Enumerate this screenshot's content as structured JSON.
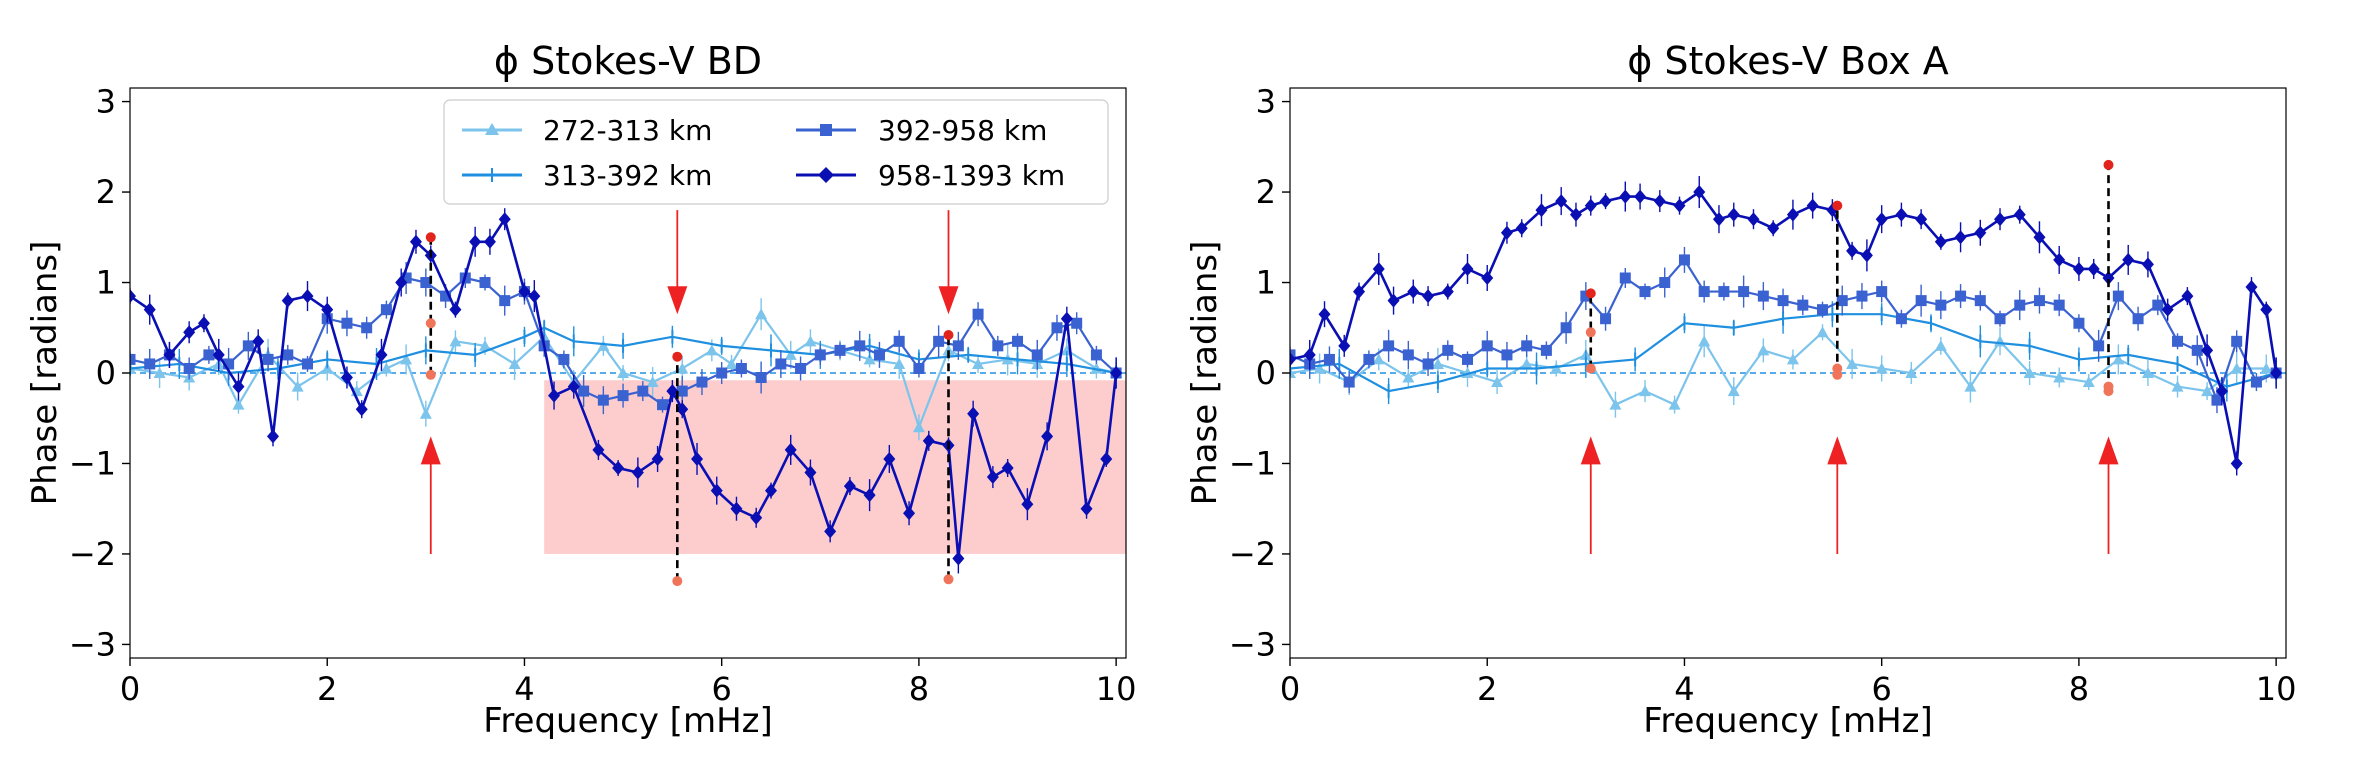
{
  "chart_data": [
    {
      "type": "line",
      "title": "ϕ Stokes-V BD",
      "xlabel": "Frequency [mHz]",
      "ylabel": "Phase [radians]",
      "xlim": [
        0,
        10.1
      ],
      "ylim": [
        -3.15,
        3.15
      ],
      "xticks": [
        0,
        2,
        4,
        6,
        8,
        10
      ],
      "xtick_labels": [
        "0",
        "2",
        "4",
        "6",
        "8",
        "10"
      ],
      "yticks": [
        -3,
        -2,
        -1,
        0,
        1,
        2,
        3
      ],
      "ytick_labels": [
        "−3",
        "−2",
        "−1",
        "0",
        "1",
        "2",
        "3"
      ],
      "shaded_region": {
        "x": [
          4.2,
          10.1
        ],
        "y": [
          -2.0,
          -0.08
        ],
        "color": "#fdcdcd"
      },
      "arrows": [
        {
          "x": 3.05,
          "direction": "up",
          "y_tip": -0.7,
          "y_tail": -2.0
        },
        {
          "x": 5.55,
          "direction": "down",
          "y_tip": 0.65,
          "y_tail": 1.8
        },
        {
          "x": 8.3,
          "direction": "down",
          "y_tip": 0.65,
          "y_tail": 1.8
        }
      ],
      "markers": [
        {
          "x": 3.05,
          "y_values": [
            1.5,
            0.55,
            -0.02
          ],
          "dashed": [
            -0.02,
            1.5
          ]
        },
        {
          "x": 5.55,
          "y_values": [
            0.18,
            -2.3
          ],
          "dashed": [
            -2.3,
            0.18
          ]
        },
        {
          "x": 8.3,
          "y_values": [
            0.42,
            -2.28
          ],
          "dashed": [
            -2.28,
            0.42
          ]
        }
      ],
      "legend": {
        "location": "upper-center",
        "entries": [
          "272-313 km",
          "313-392 km",
          "392-958 km",
          "958-1393 km"
        ]
      },
      "series": [
        {
          "name": "272-313 km",
          "color": "#7cc4ec",
          "marker": "triangle",
          "x": [
            0.0,
            0.3,
            0.6,
            0.9,
            1.1,
            1.4,
            1.7,
            2.0,
            2.3,
            2.6,
            2.8,
            3.0,
            3.3,
            3.6,
            3.9,
            4.2,
            4.5,
            4.8,
            5.0,
            5.3,
            5.6,
            5.9,
            6.1,
            6.4,
            6.7,
            6.9,
            7.2,
            7.5,
            7.8,
            8.0,
            8.3,
            8.6,
            8.9,
            9.2,
            9.5,
            9.8,
            10.0
          ],
          "y": [
            0.05,
            0.0,
            -0.05,
            0.1,
            -0.35,
            0.2,
            -0.15,
            0.05,
            -0.2,
            0.05,
            0.15,
            -0.45,
            0.35,
            0.3,
            0.1,
            0.4,
            -0.1,
            0.3,
            0.0,
            -0.1,
            0.05,
            0.25,
            0.1,
            0.65,
            0.2,
            0.35,
            0.25,
            0.15,
            0.1,
            -0.6,
            0.25,
            0.1,
            0.15,
            0.1,
            0.25,
            0.05,
            0.0
          ]
        },
        {
          "name": "313-392 km",
          "color": "#1f8fe0",
          "marker": "plus",
          "x": [
            0.0,
            0.5,
            1.0,
            1.5,
            2.0,
            2.5,
            3.0,
            3.5,
            4.0,
            4.2,
            4.5,
            5.0,
            5.5,
            6.0,
            6.5,
            7.0,
            7.5,
            8.0,
            8.5,
            9.0,
            9.5,
            10.0
          ],
          "y": [
            0.05,
            0.1,
            0.0,
            0.05,
            0.15,
            0.1,
            0.25,
            0.2,
            0.4,
            0.5,
            0.35,
            0.3,
            0.4,
            0.3,
            0.25,
            0.2,
            0.3,
            0.15,
            0.2,
            0.15,
            0.1,
            0.0
          ]
        },
        {
          "name": "392-958 km",
          "color": "#3a62d0",
          "marker": "square",
          "x": [
            0.0,
            0.2,
            0.4,
            0.6,
            0.8,
            1.0,
            1.2,
            1.4,
            1.6,
            1.8,
            2.0,
            2.2,
            2.4,
            2.6,
            2.8,
            3.0,
            3.2,
            3.4,
            3.6,
            3.8,
            4.0,
            4.2,
            4.4,
            4.6,
            4.8,
            5.0,
            5.2,
            5.4,
            5.6,
            5.8,
            6.0,
            6.2,
            6.4,
            6.6,
            6.8,
            7.0,
            7.2,
            7.4,
            7.6,
            7.8,
            8.0,
            8.2,
            8.4,
            8.6,
            8.8,
            9.0,
            9.2,
            9.4,
            9.6,
            9.8,
            10.0
          ],
          "y": [
            0.15,
            0.1,
            0.2,
            0.05,
            0.2,
            0.1,
            0.3,
            0.15,
            0.2,
            0.1,
            0.6,
            0.55,
            0.5,
            0.7,
            1.05,
            1.0,
            0.85,
            1.05,
            1.0,
            0.8,
            0.9,
            0.3,
            0.15,
            -0.2,
            -0.3,
            -0.25,
            -0.2,
            -0.35,
            -0.2,
            -0.1,
            0.0,
            0.05,
            -0.05,
            0.1,
            0.05,
            0.2,
            0.25,
            0.3,
            0.2,
            0.35,
            0.05,
            0.35,
            0.3,
            0.65,
            0.3,
            0.35,
            0.2,
            0.5,
            0.55,
            0.2,
            0.0
          ]
        },
        {
          "name": "958-1393 km",
          "color": "#0a0fb4",
          "marker": "diamond",
          "x": [
            0.0,
            0.2,
            0.4,
            0.6,
            0.75,
            0.9,
            1.1,
            1.3,
            1.45,
            1.6,
            1.8,
            2.0,
            2.2,
            2.35,
            2.55,
            2.75,
            2.9,
            3.05,
            3.3,
            3.5,
            3.65,
            3.8,
            4.0,
            4.1,
            4.3,
            4.5,
            4.75,
            4.95,
            5.15,
            5.35,
            5.5,
            5.6,
            5.75,
            5.95,
            6.15,
            6.35,
            6.5,
            6.7,
            6.9,
            7.1,
            7.3,
            7.5,
            7.7,
            7.9,
            8.1,
            8.3,
            8.4,
            8.55,
            8.75,
            8.9,
            9.1,
            9.3,
            9.5,
            9.7,
            9.9,
            10.0
          ],
          "y": [
            0.85,
            0.7,
            0.2,
            0.45,
            0.55,
            0.2,
            -0.15,
            0.35,
            -0.7,
            0.8,
            0.85,
            0.7,
            -0.05,
            -0.4,
            0.2,
            1.0,
            1.45,
            1.3,
            0.7,
            1.45,
            1.45,
            1.7,
            0.9,
            0.85,
            -0.25,
            -0.15,
            -0.85,
            -1.05,
            -1.1,
            -0.95,
            -0.2,
            -0.4,
            -0.95,
            -1.3,
            -1.5,
            -1.6,
            -1.3,
            -0.85,
            -1.1,
            -1.75,
            -1.25,
            -1.35,
            -0.95,
            -1.55,
            -0.75,
            -0.8,
            -2.05,
            -0.45,
            -1.15,
            -1.05,
            -1.45,
            -0.7,
            0.6,
            -1.5,
            -0.95,
            0.0
          ]
        }
      ]
    },
    {
      "type": "line",
      "title": "ϕ Stokes-V Box A",
      "xlabel": "Frequency [mHz]",
      "ylabel": "Phase [radians]",
      "xlim": [
        0,
        10.1
      ],
      "ylim": [
        -3.15,
        3.15
      ],
      "xticks": [
        0,
        2,
        4,
        6,
        8,
        10
      ],
      "xtick_labels": [
        "0",
        "2",
        "4",
        "6",
        "8",
        "10"
      ],
      "yticks": [
        -3,
        -2,
        -1,
        0,
        1,
        2,
        3
      ],
      "ytick_labels": [
        "−3",
        "−2",
        "−1",
        "0",
        "1",
        "2",
        "3"
      ],
      "arrows": [
        {
          "x": 3.05,
          "direction": "up",
          "y_tip": -0.7,
          "y_tail": -2.0
        },
        {
          "x": 5.55,
          "direction": "up",
          "y_tip": -0.7,
          "y_tail": -2.0
        },
        {
          "x": 8.3,
          "direction": "up",
          "y_tip": -0.7,
          "y_tail": -2.0
        }
      ],
      "markers": [
        {
          "x": 3.05,
          "y_values": [
            0.88,
            0.45,
            0.05
          ],
          "dashed": [
            0.05,
            0.88
          ]
        },
        {
          "x": 5.55,
          "y_values": [
            1.85,
            0.05,
            -0.02
          ],
          "dashed": [
            -0.02,
            1.85
          ]
        },
        {
          "x": 8.3,
          "y_values": [
            2.3,
            -0.15,
            -0.2
          ],
          "dashed": [
            -0.2,
            2.3
          ]
        }
      ],
      "series": [
        {
          "name": "272-313 km",
          "color": "#7cc4ec",
          "marker": "triangle",
          "x": [
            0.0,
            0.3,
            0.6,
            0.9,
            1.2,
            1.5,
            1.8,
            2.1,
            2.4,
            2.7,
            3.0,
            3.3,
            3.6,
            3.9,
            4.2,
            4.5,
            4.8,
            5.1,
            5.4,
            5.7,
            6.0,
            6.3,
            6.6,
            6.9,
            7.2,
            7.5,
            7.8,
            8.1,
            8.4,
            8.7,
            9.0,
            9.3,
            9.6,
            9.9,
            10.0
          ],
          "y": [
            0.0,
            0.05,
            -0.1,
            0.15,
            -0.05,
            0.1,
            0.0,
            -0.1,
            0.1,
            0.05,
            0.2,
            -0.35,
            -0.2,
            -0.35,
            0.35,
            -0.2,
            0.25,
            0.15,
            0.45,
            0.1,
            0.05,
            0.0,
            0.3,
            -0.15,
            0.35,
            0.0,
            -0.05,
            -0.1,
            0.15,
            0.0,
            -0.15,
            -0.2,
            0.05,
            0.05,
            0.0
          ]
        },
        {
          "name": "313-392 km",
          "color": "#1f8fe0",
          "marker": "plus",
          "x": [
            0.0,
            0.5,
            1.0,
            1.5,
            2.0,
            2.5,
            3.0,
            3.5,
            4.0,
            4.5,
            5.0,
            5.5,
            6.0,
            6.5,
            7.0,
            7.5,
            8.0,
            8.5,
            9.0,
            9.5,
            10.0
          ],
          "y": [
            0.05,
            0.1,
            -0.2,
            -0.1,
            0.05,
            0.05,
            0.1,
            0.15,
            0.55,
            0.5,
            0.6,
            0.65,
            0.65,
            0.55,
            0.35,
            0.3,
            0.15,
            0.2,
            0.1,
            -0.15,
            0.0
          ]
        },
        {
          "name": "392-958 km",
          "color": "#3a62d0",
          "marker": "square",
          "x": [
            0.0,
            0.2,
            0.4,
            0.6,
            0.8,
            1.0,
            1.2,
            1.4,
            1.6,
            1.8,
            2.0,
            2.2,
            2.4,
            2.6,
            2.8,
            3.0,
            3.2,
            3.4,
            3.6,
            3.8,
            4.0,
            4.2,
            4.4,
            4.6,
            4.8,
            5.0,
            5.2,
            5.4,
            5.6,
            5.8,
            6.0,
            6.2,
            6.4,
            6.6,
            6.8,
            7.0,
            7.2,
            7.4,
            7.6,
            7.8,
            8.0,
            8.2,
            8.4,
            8.6,
            8.8,
            9.0,
            9.2,
            9.4,
            9.6,
            9.8,
            10.0
          ],
          "y": [
            0.2,
            0.1,
            0.15,
            -0.1,
            0.15,
            0.3,
            0.2,
            0.1,
            0.25,
            0.15,
            0.3,
            0.2,
            0.3,
            0.25,
            0.5,
            0.85,
            0.6,
            1.05,
            0.9,
            1.0,
            1.25,
            0.9,
            0.9,
            0.9,
            0.85,
            0.8,
            0.75,
            0.7,
            0.8,
            0.85,
            0.9,
            0.6,
            0.8,
            0.75,
            0.85,
            0.8,
            0.6,
            0.75,
            0.8,
            0.75,
            0.55,
            0.3,
            0.85,
            0.6,
            0.75,
            0.35,
            0.25,
            -0.3,
            0.35,
            -0.1,
            0.0
          ]
        },
        {
          "name": "958-1393 km",
          "color": "#0a0fb4",
          "marker": "diamond",
          "x": [
            0.0,
            0.2,
            0.35,
            0.55,
            0.7,
            0.9,
            1.05,
            1.25,
            1.4,
            1.6,
            1.8,
            2.0,
            2.2,
            2.35,
            2.55,
            2.75,
            2.9,
            3.05,
            3.2,
            3.4,
            3.55,
            3.75,
            3.95,
            4.15,
            4.35,
            4.5,
            4.7,
            4.9,
            5.1,
            5.3,
            5.5,
            5.7,
            5.85,
            6.0,
            6.2,
            6.4,
            6.6,
            6.8,
            7.0,
            7.2,
            7.4,
            7.6,
            7.8,
            8.0,
            8.15,
            8.3,
            8.5,
            8.7,
            8.9,
            9.1,
            9.3,
            9.45,
            9.6,
            9.75,
            9.9,
            10.0
          ],
          "y": [
            0.15,
            0.2,
            0.65,
            0.3,
            0.9,
            1.15,
            0.8,
            0.9,
            0.85,
            0.9,
            1.15,
            1.05,
            1.55,
            1.6,
            1.8,
            1.9,
            1.75,
            1.85,
            1.9,
            1.95,
            1.95,
            1.9,
            1.85,
            2.0,
            1.7,
            1.75,
            1.7,
            1.6,
            1.75,
            1.85,
            1.8,
            1.35,
            1.3,
            1.7,
            1.75,
            1.7,
            1.45,
            1.5,
            1.55,
            1.7,
            1.75,
            1.5,
            1.25,
            1.15,
            1.15,
            1.05,
            1.25,
            1.2,
            0.7,
            0.85,
            0.25,
            -0.2,
            -1.0,
            0.95,
            0.7,
            0.0
          ]
        }
      ]
    }
  ]
}
